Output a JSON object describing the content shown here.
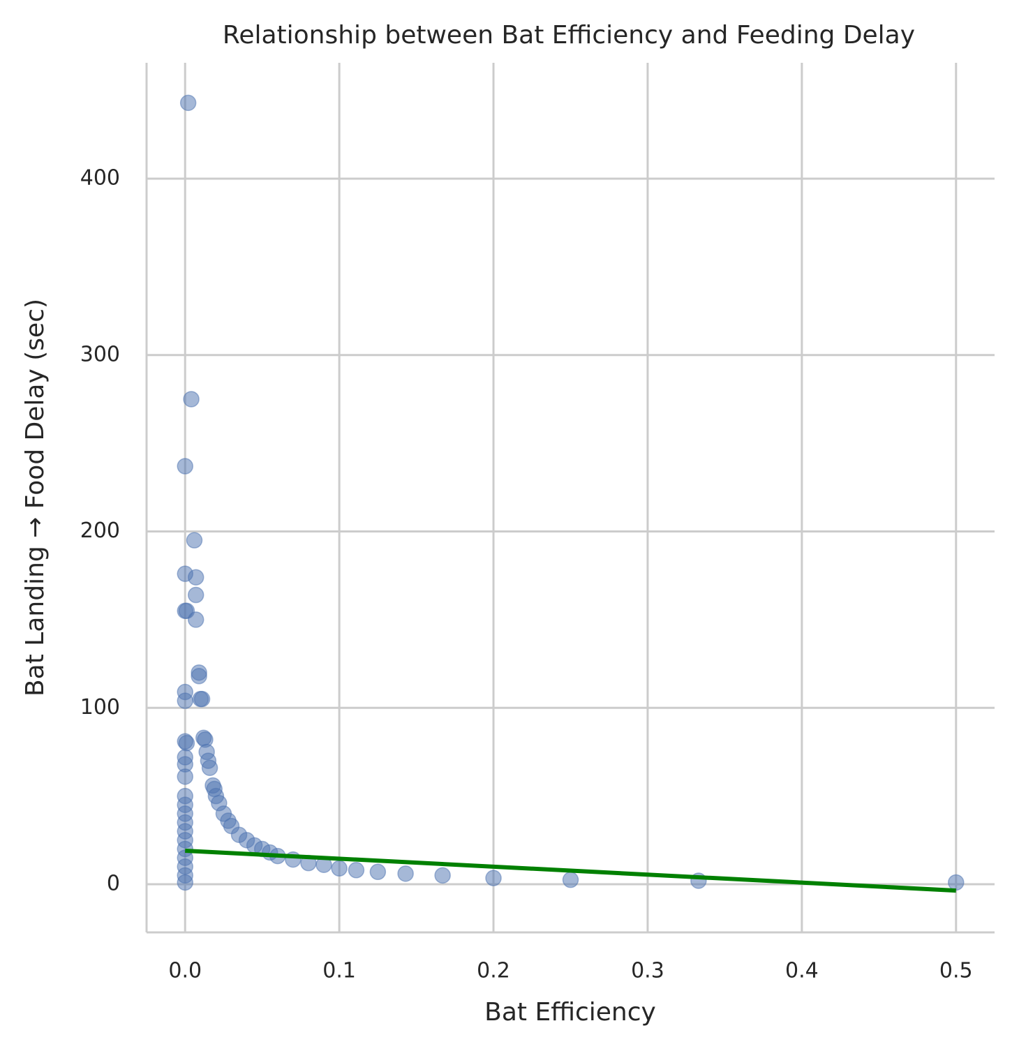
{
  "chart_data": {
    "type": "scatter",
    "title": "Relationship between Bat Efficiency and Feeding Delay",
    "xlabel": "Bat Efficiency",
    "ylabel": "Bat Landing → Food Delay (sec)",
    "xlim": [
      -0.025,
      0.525
    ],
    "ylim": [
      -27.3,
      465.7
    ],
    "xticks": [
      {
        "value": 0,
        "label": "0.0"
      },
      0.1,
      0.2,
      0.3,
      0.4,
      0.5
    ],
    "yticks": [
      0,
      100,
      200,
      300,
      400
    ],
    "grid": true,
    "series": [
      {
        "type": "scatter",
        "color": "#4c72b0",
        "alpha": 0.5,
        "x": [
          0.002,
          0.004,
          0,
          0.006,
          0,
          0.007,
          0.007,
          0,
          0.001,
          0.007,
          0.009,
          0.009,
          0,
          0,
          0.01,
          0.011,
          0,
          0.001,
          0,
          0,
          0,
          0,
          0,
          0,
          0,
          0,
          0,
          0,
          0,
          0,
          0,
          0,
          0.012,
          0.013,
          0.014,
          0.015,
          0.016,
          0.018,
          0.019,
          0.02,
          0.022,
          0.025,
          0.028,
          0.03,
          0.035,
          0.04,
          0.045,
          0.05,
          0.055,
          0.06,
          0.07,
          0.08,
          0.09,
          0.1,
          0.111,
          0.125,
          0.143,
          0.167,
          0.2,
          0.25,
          0.333,
          0.5
        ],
        "values": [
          443,
          275,
          237,
          195,
          176,
          174,
          164,
          155,
          155,
          150,
          120,
          118,
          109,
          104,
          105,
          105,
          81,
          80,
          72,
          68,
          61,
          50,
          45,
          40,
          35,
          30,
          25,
          20,
          15,
          10,
          5,
          1,
          83,
          82,
          75,
          70,
          66,
          56,
          54,
          50,
          46,
          40,
          36,
          33,
          28,
          25,
          22,
          20,
          18,
          16,
          14,
          12,
          11,
          9,
          8,
          7,
          6,
          5,
          3.5,
          2.5,
          2,
          1
        ]
      },
      {
        "type": "line",
        "color": "#008000",
        "x": [
          0,
          0.5
        ],
        "values": [
          19,
          -3.6
        ]
      }
    ]
  }
}
